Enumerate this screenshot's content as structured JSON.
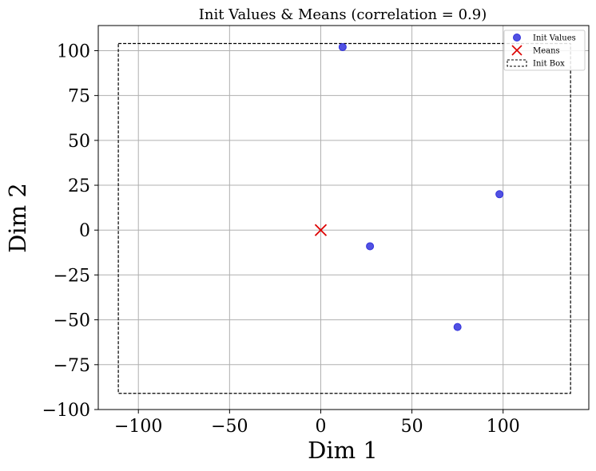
{
  "chart_data": {
    "type": "scatter",
    "title": "Init Values & Means (correlation = 0.9)",
    "xlabel": "Dim 1",
    "ylabel": "Dim 2",
    "xlim": [
      -122,
      147
    ],
    "ylim": [
      -100,
      114
    ],
    "x_ticks": [
      -100,
      -50,
      0,
      50,
      100
    ],
    "y_ticks": [
      -100,
      -75,
      -50,
      -25,
      0,
      25,
      50,
      75,
      100
    ],
    "grid": true,
    "legend_position": "top-right",
    "series": [
      {
        "name": "Init Values",
        "marker": "circle",
        "color": "#3333dd",
        "points": [
          {
            "x": 12,
            "y": 102
          },
          {
            "x": 27,
            "y": -9
          },
          {
            "x": 98,
            "y": 20
          },
          {
            "x": 75,
            "y": -54
          }
        ]
      },
      {
        "name": "Means",
        "marker": "x",
        "color": "#dd0000",
        "points": [
          {
            "x": 0,
            "y": 0
          }
        ]
      }
    ],
    "init_box": {
      "name": "Init Box",
      "x_range": [
        -111,
        137
      ],
      "y_range": [
        -91,
        104
      ],
      "color": "#000000",
      "style": "dashed"
    }
  }
}
